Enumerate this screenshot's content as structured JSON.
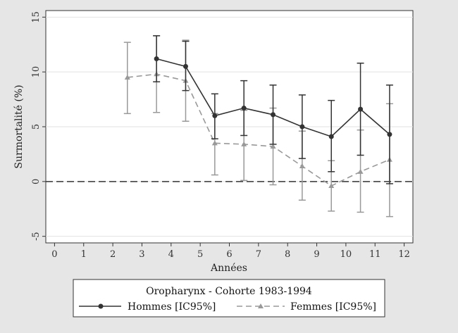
{
  "chart_data": {
    "type": "line",
    "title": "Oropharynx - Cohorte 1983-1994",
    "xlabel": "Années",
    "ylabel": "Surmortalité (%)",
    "xlim": [
      -0.3,
      12.3
    ],
    "ylim": [
      -5.6,
      15.6
    ],
    "xticks": [
      0,
      1,
      2,
      3,
      4,
      5,
      6,
      7,
      8,
      9,
      10,
      11,
      12
    ],
    "yticks": [
      -5,
      0,
      5,
      10,
      15
    ],
    "grid": true,
    "reference_line": 0,
    "legend_position": "bottom",
    "series": [
      {
        "name": "Hommes [IC95%]",
        "color": "#333333",
        "marker": "circle",
        "dash": "solid",
        "x": [
          3.5,
          4.5,
          5.5,
          6.5,
          7.5,
          8.5,
          9.5,
          10.5,
          11.5
        ],
        "values": [
          11.2,
          10.5,
          6.0,
          6.7,
          6.1,
          5.0,
          4.1,
          6.6,
          4.3
        ],
        "lower": [
          9.1,
          8.3,
          3.9,
          4.2,
          3.4,
          2.1,
          0.9,
          2.4,
          -0.2
        ],
        "upper": [
          13.3,
          12.8,
          8.0,
          9.2,
          8.8,
          7.9,
          7.4,
          10.8,
          8.8
        ]
      },
      {
        "name": "Femmes [IC95%]",
        "color": "#999999",
        "marker": "triangle",
        "dash": "dashed",
        "x": [
          2.5,
          3.5,
          4.5,
          5.5,
          6.5,
          7.5,
          8.5,
          9.5,
          10.5,
          11.5
        ],
        "values": [
          9.5,
          9.8,
          9.2,
          3.5,
          3.4,
          3.2,
          1.4,
          -0.4,
          0.9,
          2.0
        ],
        "lower": [
          6.2,
          6.3,
          5.5,
          0.6,
          0.1,
          -0.3,
          -1.7,
          -2.7,
          -2.8,
          -3.2
        ],
        "upper": [
          12.7,
          13.3,
          12.9,
          6.2,
          6.5,
          6.7,
          4.6,
          1.9,
          4.7,
          7.1
        ]
      }
    ]
  }
}
